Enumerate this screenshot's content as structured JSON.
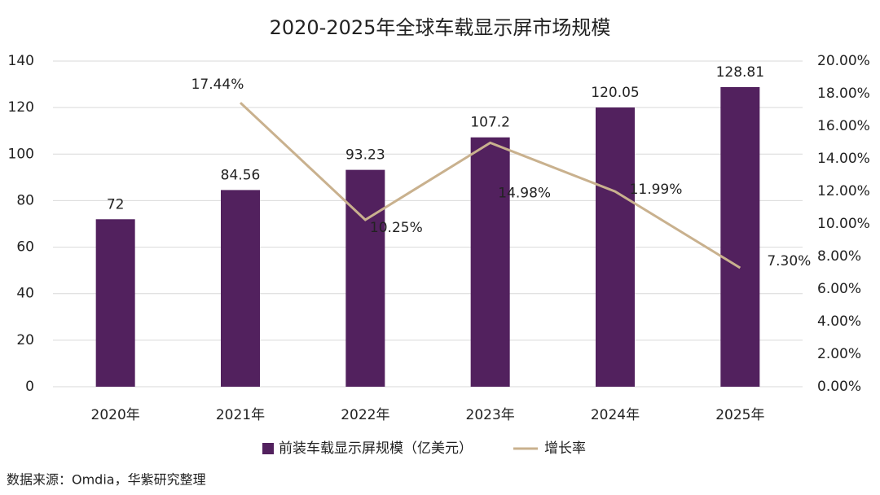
{
  "chart_data": {
    "type": "bar-line",
    "title": "2020-2025年全球车载显示屏市场规模",
    "categories": [
      "2020年",
      "2021年",
      "2022年",
      "2023年",
      "2024年",
      "2025年"
    ],
    "series": [
      {
        "name": "前装车载显示屏规模（亿美元）",
        "type": "bar",
        "color": "#52215e",
        "values": [
          72,
          84.56,
          93.23,
          107.2,
          120.05,
          128.81
        ]
      },
      {
        "name": "增长率",
        "type": "line",
        "axis": "y2",
        "color": "#c9b18e",
        "values": [
          null,
          17.44,
          10.25,
          14.98,
          11.99,
          7.3
        ],
        "value_labels": [
          null,
          "17.44%",
          "10.25%",
          "14.98%",
          "11.99%",
          "7.30%"
        ]
      }
    ],
    "ylim": [
      0,
      140
    ],
    "yticks": [
      0,
      20,
      40,
      60,
      80,
      100,
      120,
      140
    ],
    "y2lim": [
      0,
      20
    ],
    "y2ticks": [
      {
        "value": 0,
        "label": "0.00%"
      },
      {
        "value": 2,
        "label": "2.00%"
      },
      {
        "value": 4,
        "label": "4.00%"
      },
      {
        "value": 6,
        "label": "6.00%"
      },
      {
        "value": 8,
        "label": "8.00%"
      },
      {
        "value": 10,
        "label": "10.00%"
      },
      {
        "value": 12,
        "label": "12.00%"
      },
      {
        "value": 14,
        "label": "14.00%"
      },
      {
        "value": 16,
        "label": "16.00%"
      },
      {
        "value": 18,
        "label": "18.00%"
      },
      {
        "value": 20,
        "label": "20.00%"
      }
    ],
    "grid": true,
    "legend": "bottom",
    "source": "数据来源：Omdia，华紫研究整理"
  }
}
